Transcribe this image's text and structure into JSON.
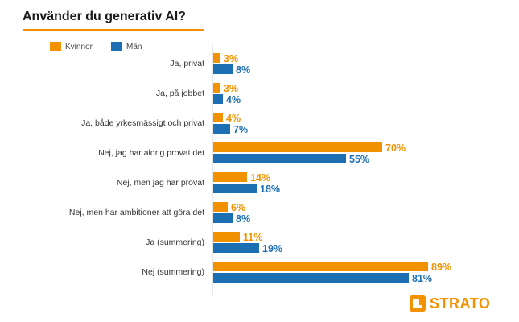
{
  "colors": {
    "accent": "#f39200",
    "series_women": "#f39200",
    "series_men": "#1c6fb3"
  },
  "brand": {
    "logo_text": "STRATO"
  },
  "chart_data": {
    "type": "bar",
    "orientation": "horizontal",
    "title": "Använder du generativ AI?",
    "categories": [
      "Ja, privat",
      "Ja, på jobbet",
      "Ja, både yrkesmässigt och privat",
      "Nej, jag har aldrig provat det",
      "Nej, men jag har provat",
      "Nej, men har ambitioner att göra det",
      "Ja (summering)",
      "Nej (summering)"
    ],
    "series": [
      {
        "name": "Kvinnor",
        "color": "#f39200",
        "values": [
          3,
          3,
          4,
          70,
          14,
          6,
          11,
          89
        ]
      },
      {
        "name": "Män",
        "color": "#1c6fb3",
        "values": [
          8,
          4,
          7,
          55,
          18,
          8,
          19,
          81
        ]
      }
    ],
    "value_suffix": "%",
    "xlim": [
      0,
      100
    ],
    "legend_position": "top-left",
    "grid": false
  }
}
